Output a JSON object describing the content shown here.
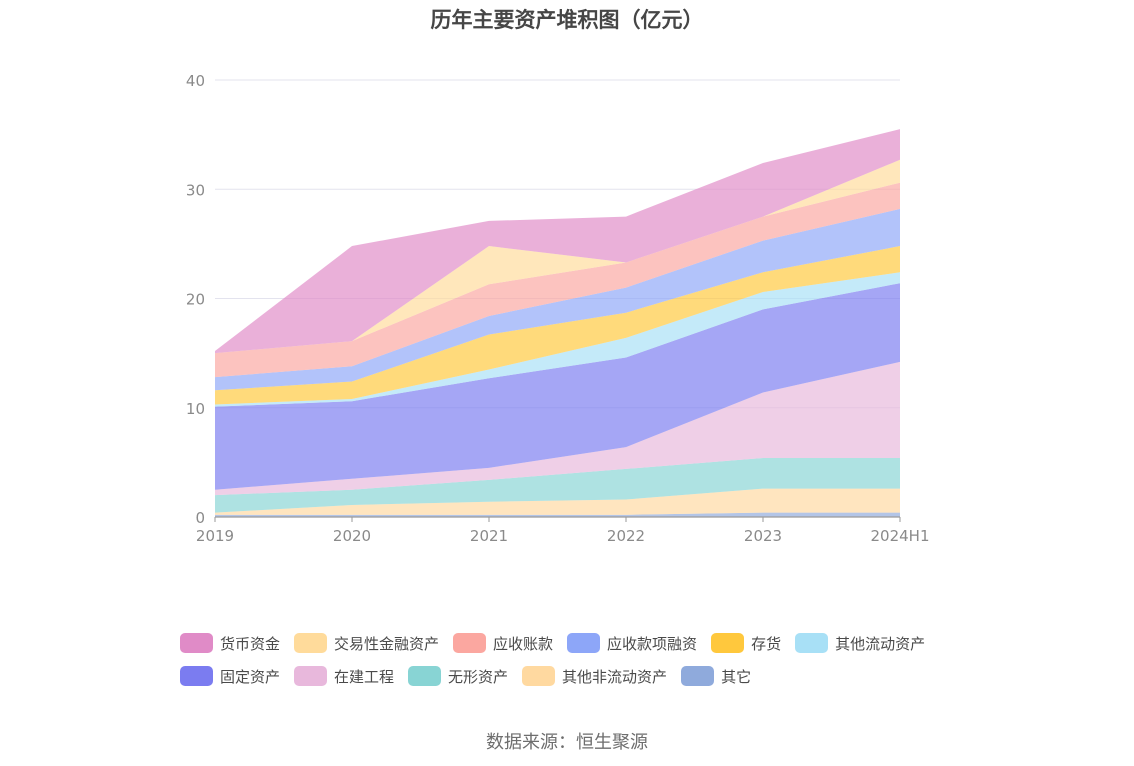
{
  "chart_data": {
    "type": "area",
    "title": "历年主要资产堆积图（亿元）",
    "categories": [
      "2019",
      "2020",
      "2021",
      "2022",
      "2023",
      "2024H1"
    ],
    "ylim": [
      0,
      40
    ],
    "yticks": [
      0,
      10,
      20,
      30,
      40
    ],
    "stacked": true,
    "grid": true,
    "legend_position": "bottom",
    "series": [
      {
        "name": "其它",
        "color": "#8FAADC",
        "values": [
          0.2,
          0.2,
          0.2,
          0.2,
          0.4,
          0.4
        ]
      },
      {
        "name": "其他非流动资产",
        "color": "#FFD9A0",
        "values": [
          0.2,
          0.9,
          1.2,
          1.4,
          2.2,
          2.2
        ]
      },
      {
        "name": "无形资产",
        "color": "#88D4D4",
        "values": [
          1.6,
          1.4,
          2.0,
          2.8,
          2.8,
          2.8
        ]
      },
      {
        "name": "在建工程",
        "color": "#E8B8DC",
        "values": [
          0.5,
          1.0,
          1.1,
          2.0,
          6.0,
          8.8
        ]
      },
      {
        "name": "固定资产",
        "color": "#7B7CF0",
        "values": [
          7.6,
          7.1,
          8.2,
          8.2,
          7.6,
          7.2
        ]
      },
      {
        "name": "其他流动资产",
        "color": "#A8E0F6",
        "values": [
          0.2,
          0.2,
          0.8,
          1.8,
          1.6,
          1.0
        ]
      },
      {
        "name": "存货",
        "color": "#FFC83D",
        "values": [
          1.3,
          1.6,
          3.2,
          2.3,
          1.8,
          2.4
        ]
      },
      {
        "name": "应收款项融资",
        "color": "#8DA6F8",
        "values": [
          1.2,
          1.4,
          1.7,
          2.3,
          2.9,
          3.4
        ]
      },
      {
        "name": "应收账款",
        "color": "#FBA7A0",
        "values": [
          2.2,
          2.3,
          2.9,
          2.3,
          2.2,
          2.4
        ]
      },
      {
        "name": "交易性金融资产",
        "color": "#FFDB9B",
        "values": [
          0.0,
          0.0,
          3.5,
          0.0,
          0.0,
          2.1
        ]
      },
      {
        "name": "货币资金",
        "color": "#E08BC7",
        "values": [
          0.2,
          8.7,
          2.3,
          4.2,
          4.9,
          2.8
        ]
      }
    ]
  },
  "legend": {
    "row1": [
      {
        "label": "货币资金",
        "color": "#E08BC7"
      },
      {
        "label": "交易性金融资产",
        "color": "#FFDB9B"
      },
      {
        "label": "应收账款",
        "color": "#FBA7A0"
      },
      {
        "label": "应收款项融资",
        "color": "#8DA6F8"
      },
      {
        "label": "存货",
        "color": "#FFC83D"
      },
      {
        "label": "其他流动资产",
        "color": "#A8E0F6"
      }
    ],
    "row2": [
      {
        "label": "固定资产",
        "color": "#7B7CF0"
      },
      {
        "label": "在建工程",
        "color": "#E8B8DC"
      },
      {
        "label": "无形资产",
        "color": "#88D4D4"
      },
      {
        "label": "其他非流动资产",
        "color": "#FFD9A0"
      },
      {
        "label": "其它",
        "color": "#8FAADC"
      }
    ]
  },
  "source": "数据来源：恒生聚源"
}
